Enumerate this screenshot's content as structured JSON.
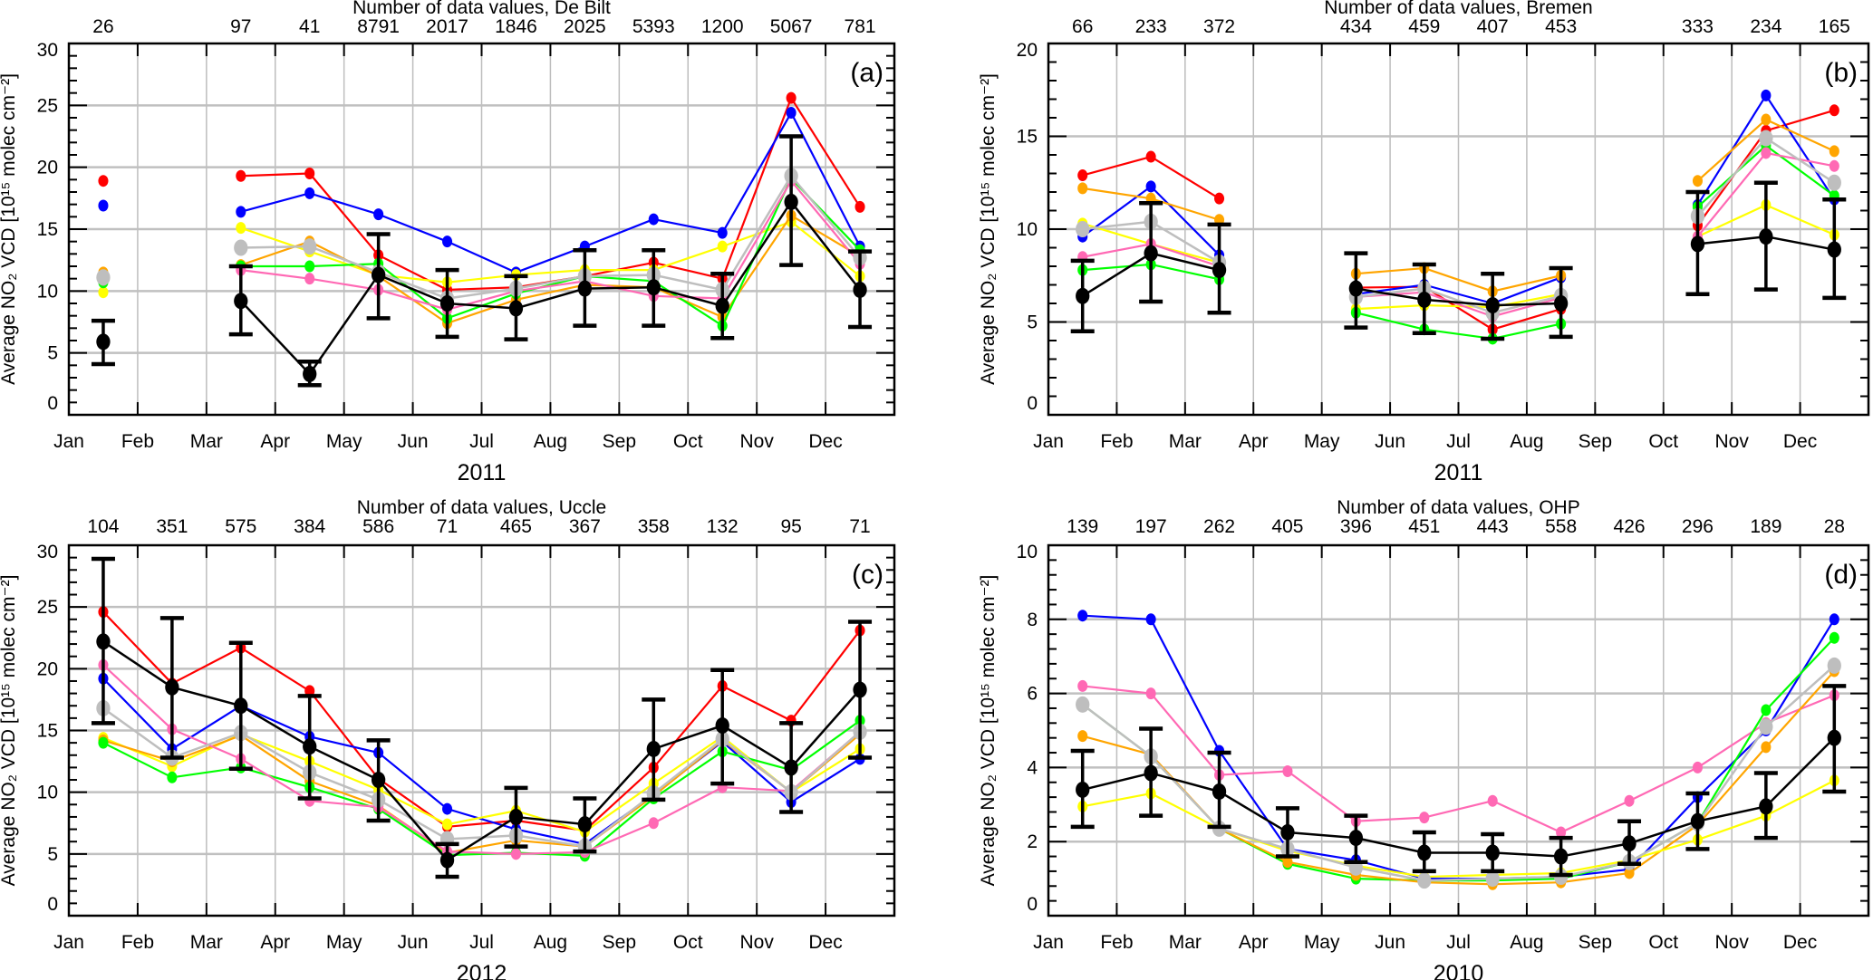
{
  "chart_data": [
    {
      "type": "line",
      "panel_label": "(a)",
      "title": "Number of data values, De Bilt",
      "counts": [
        "26",
        "",
        "97",
        "41",
        "8791",
        "2017",
        "1846",
        "2025",
        "5393",
        "1200",
        "5067",
        "781"
      ],
      "categories": [
        "Jan",
        "Feb",
        "Mar",
        "Apr",
        "May",
        "Jun",
        "Jul",
        "Aug",
        "Sep",
        "Oct",
        "Nov",
        "Dec"
      ],
      "xlabel": "2011",
      "ylabel": "Average NO₂ VCD [10¹⁵ molec cm⁻²]",
      "ylim": [
        0,
        30
      ],
      "yticks": [
        0,
        5,
        10,
        15,
        20,
        25,
        30
      ],
      "grid": true,
      "series": [
        {
          "color": "#ff0000",
          "values": [
            18.9,
            null,
            19.3,
            19.5,
            12.9,
            10.1,
            10.3,
            11.2,
            12.3,
            11.0,
            25.6,
            16.8
          ]
        },
        {
          "color": "#0000ff",
          "values": [
            16.9,
            null,
            16.4,
            17.9,
            16.2,
            14.0,
            11.5,
            13.6,
            15.8,
            14.7,
            24.4,
            13.6
          ]
        },
        {
          "color": "#ffff00",
          "values": [
            9.9,
            null,
            15.1,
            13.2,
            11.3,
            10.7,
            11.3,
            11.7,
            11.7,
            13.6,
            15.6,
            11.2
          ]
        },
        {
          "color": "#ffa500",
          "values": [
            11.5,
            null,
            12.1,
            14.0,
            11.2,
            7.4,
            9.3,
            10.5,
            10.3,
            7.9,
            16.1,
            12.8
          ]
        },
        {
          "color": "#00ff00",
          "values": [
            10.7,
            null,
            12.0,
            12.0,
            12.2,
            7.8,
            9.8,
            11.2,
            10.8,
            7.2,
            19.1,
            13.3
          ]
        },
        {
          "color": "#ff69b4",
          "values": [
            10.9,
            null,
            11.7,
            11.0,
            10.1,
            8.5,
            10.0,
            10.8,
            9.6,
            9.4,
            18.9,
            12.2
          ]
        },
        {
          "color": "#bebebe",
          "values": [
            11.1,
            null,
            13.5,
            13.6,
            11.5,
            9.4,
            10.2,
            11.2,
            11.3,
            10.1,
            19.3,
            12.7
          ]
        },
        {
          "color": "#000000",
          "values": [
            5.9,
            null,
            9.2,
            3.3,
            11.3,
            9.0,
            8.6,
            10.2,
            10.3,
            8.8,
            17.2,
            10.1
          ],
          "error_low": [
            4.1,
            null,
            6.5,
            2.4,
            7.8,
            6.3,
            6.1,
            7.2,
            7.2,
            6.2,
            12.1,
            7.1
          ],
          "error_high": [
            7.6,
            null,
            12.0,
            4.3,
            14.6,
            11.7,
            11.2,
            13.3,
            13.3,
            11.4,
            22.5,
            13.2
          ]
        }
      ]
    },
    {
      "type": "line",
      "panel_label": "(b)",
      "title": "Number of data values, Bremen",
      "counts": [
        "66",
        "233",
        "372",
        "",
        "434",
        "459",
        "407",
        "453",
        "",
        "333",
        "234",
        "165"
      ],
      "categories": [
        "Jan",
        "Feb",
        "Mar",
        "Apr",
        "May",
        "Jun",
        "Jul",
        "Aug",
        "Sep",
        "Oct",
        "Nov",
        "Dec"
      ],
      "xlabel": "2011",
      "ylabel": "Average NO₂ VCD [10¹⁵ molec cm⁻²]",
      "ylim": [
        0,
        20
      ],
      "yticks": [
        0,
        5,
        10,
        15,
        20
      ],
      "grid": true,
      "series": [
        {
          "color": "#ff0000",
          "values": [
            12.9,
            13.9,
            11.65,
            null,
            6.85,
            6.9,
            4.6,
            5.7,
            null,
            10.2,
            15.3,
            16.4
          ]
        },
        {
          "color": "#0000ff",
          "values": [
            9.6,
            12.3,
            8.6,
            null,
            6.5,
            7.0,
            6.0,
            7.4,
            null,
            11.3,
            17.2,
            11.6
          ]
        },
        {
          "color": "#ffa500",
          "values": [
            12.2,
            11.65,
            10.5,
            null,
            7.6,
            7.9,
            6.65,
            7.5,
            null,
            12.6,
            15.9,
            14.2
          ]
        },
        {
          "color": "#ffff00",
          "values": [
            10.3,
            9.2,
            8.2,
            null,
            5.7,
            5.9,
            5.8,
            6.5,
            null,
            9.6,
            11.3,
            9.7
          ]
        },
        {
          "color": "#00ff00",
          "values": [
            7.8,
            8.1,
            7.3,
            null,
            5.5,
            4.6,
            4.1,
            4.9,
            null,
            11.2,
            14.5,
            11.8
          ]
        },
        {
          "color": "#ff69b4",
          "values": [
            8.5,
            9.2,
            8.0,
            null,
            6.35,
            6.6,
            5.3,
            6.3,
            null,
            9.6,
            14.1,
            13.4
          ]
        },
        {
          "color": "#bebebe",
          "values": [
            10.0,
            10.4,
            8.2,
            null,
            6.35,
            6.8,
            5.5,
            6.4,
            null,
            10.7,
            14.9,
            12.5
          ]
        },
        {
          "color": "#000000",
          "values": [
            6.4,
            8.7,
            7.8,
            null,
            6.8,
            6.2,
            5.9,
            6.0,
            null,
            9.2,
            9.6,
            8.9
          ],
          "error_low": [
            4.5,
            6.1,
            5.5,
            null,
            4.7,
            4.4,
            4.1,
            4.2,
            null,
            6.5,
            6.75,
            6.3
          ],
          "error_high": [
            8.3,
            11.4,
            10.25,
            null,
            8.7,
            8.1,
            7.6,
            7.9,
            null,
            12.0,
            12.5,
            11.6
          ]
        }
      ]
    },
    {
      "type": "line",
      "panel_label": "(c)",
      "title": "Number of data values, Uccle",
      "counts": [
        "104",
        "351",
        "575",
        "384",
        "586",
        "71",
        "465",
        "367",
        "358",
        "132",
        "95",
        "71"
      ],
      "categories": [
        "Jan",
        "Feb",
        "Mar",
        "Apr",
        "May",
        "Jun",
        "Jul",
        "Aug",
        "Sep",
        "Oct",
        "Nov",
        "Dec"
      ],
      "xlabel": "2012",
      "ylabel": "Average NO₂ VCD [10¹⁵ molec cm⁻²]",
      "ylim": [
        0,
        30
      ],
      "yticks": [
        0,
        5,
        10,
        15,
        20,
        25,
        30
      ],
      "grid": true,
      "series": [
        {
          "color": "#ff0000",
          "values": [
            24.6,
            18.8,
            21.7,
            18.2,
            11.1,
            7.2,
            7.7,
            6.9,
            12.0,
            18.6,
            15.8,
            23.1
          ]
        },
        {
          "color": "#0000ff",
          "values": [
            19.2,
            13.5,
            17.0,
            14.5,
            13.2,
            8.65,
            7.0,
            5.8,
            9.8,
            14.1,
            9.2,
            12.7
          ]
        },
        {
          "color": "#ffff00",
          "values": [
            14.4,
            12.1,
            14.7,
            12.5,
            10.2,
            7.4,
            8.5,
            6.8,
            10.7,
            14.5,
            10.0,
            13.5
          ]
        },
        {
          "color": "#ffa500",
          "values": [
            14.2,
            12.5,
            14.6,
            10.9,
            8.9,
            5.1,
            6.1,
            5.6,
            9.7,
            14.2,
            10.0,
            14.7
          ]
        },
        {
          "color": "#00ff00",
          "values": [
            14.0,
            11.2,
            12.0,
            10.4,
            8.65,
            4.9,
            5.1,
            4.85,
            9.5,
            13.3,
            11.8,
            15.8
          ]
        },
        {
          "color": "#ff69b4",
          "values": [
            20.3,
            15.1,
            12.7,
            9.3,
            8.8,
            5.2,
            5.0,
            5.15,
            7.5,
            10.4,
            10.1,
            14.9
          ]
        },
        {
          "color": "#bebebe",
          "values": [
            16.8,
            12.8,
            14.8,
            11.6,
            9.4,
            6.2,
            6.5,
            5.6,
            9.9,
            14.3,
            10.0,
            14.9
          ]
        },
        {
          "color": "#000000",
          "values": [
            22.2,
            18.5,
            17.0,
            13.7,
            11.0,
            4.5,
            8.0,
            7.4,
            13.5,
            15.4,
            12.0,
            18.3
          ],
          "error_low": [
            15.6,
            12.8,
            11.9,
            9.5,
            7.7,
            3.15,
            5.6,
            5.2,
            9.4,
            10.7,
            8.4,
            12.8
          ],
          "error_high": [
            28.9,
            24.1,
            22.1,
            17.8,
            14.2,
            5.8,
            10.35,
            9.5,
            17.5,
            19.9,
            15.6,
            23.8
          ]
        }
      ]
    },
    {
      "type": "line",
      "panel_label": "(d)",
      "title": "Number of data values, OHP",
      "counts": [
        "139",
        "197",
        "262",
        "405",
        "396",
        "451",
        "443",
        "558",
        "426",
        "296",
        "189",
        "28"
      ],
      "categories": [
        "Jan",
        "Feb",
        "Mar",
        "Apr",
        "May",
        "Jun",
        "Jul",
        "Aug",
        "Sep",
        "Oct",
        "Nov",
        "Dec"
      ],
      "xlabel": "2010",
      "ylabel": "Average NO₂ VCD [10¹⁵ molec cm⁻²]",
      "ylim": [
        0,
        10
      ],
      "yticks": [
        0,
        2,
        4,
        6,
        8,
        10
      ],
      "grid": true,
      "series": [
        {
          "color": "#0000ff",
          "values": [
            8.1,
            8.0,
            4.45,
            1.8,
            1.5,
            1.0,
            1.0,
            1.05,
            1.25,
            3.2,
            5.0,
            8.0
          ]
        },
        {
          "color": "#ff69b4",
          "values": [
            6.2,
            6.0,
            3.8,
            3.9,
            2.55,
            2.65,
            3.1,
            2.25,
            3.1,
            4.0,
            5.2,
            5.95
          ]
        },
        {
          "color": "#00ff00",
          "values": [
            5.7,
            4.3,
            2.35,
            1.4,
            1.0,
            0.95,
            0.95,
            1.0,
            1.45,
            2.5,
            5.55,
            7.5
          ]
        },
        {
          "color": "#ffa500",
          "values": [
            4.85,
            4.35,
            2.35,
            1.45,
            1.1,
            0.9,
            0.85,
            0.9,
            1.15,
            2.45,
            4.55,
            6.6
          ]
        },
        {
          "color": "#ffff00",
          "values": [
            2.95,
            3.3,
            2.35,
            1.75,
            1.35,
            1.05,
            1.1,
            1.15,
            1.5,
            2.05,
            2.7,
            3.65
          ]
        },
        {
          "color": "#bebebe",
          "values": [
            5.7,
            4.3,
            2.35,
            1.8,
            1.3,
            0.95,
            1.0,
            1.05,
            1.45,
            2.5,
            5.1,
            6.75
          ]
        },
        {
          "color": "#000000",
          "values": [
            3.4,
            3.85,
            3.35,
            2.25,
            2.1,
            1.7,
            1.7,
            1.6,
            1.95,
            2.55,
            2.95,
            4.8
          ],
          "error_low": [
            2.4,
            2.7,
            2.4,
            1.6,
            1.45,
            1.2,
            1.2,
            1.1,
            1.4,
            1.8,
            2.1,
            3.35
          ],
          "error_high": [
            4.45,
            5.05,
            4.4,
            2.9,
            2.7,
            2.25,
            2.2,
            2.1,
            2.55,
            3.3,
            3.85,
            6.2
          ]
        }
      ]
    }
  ]
}
